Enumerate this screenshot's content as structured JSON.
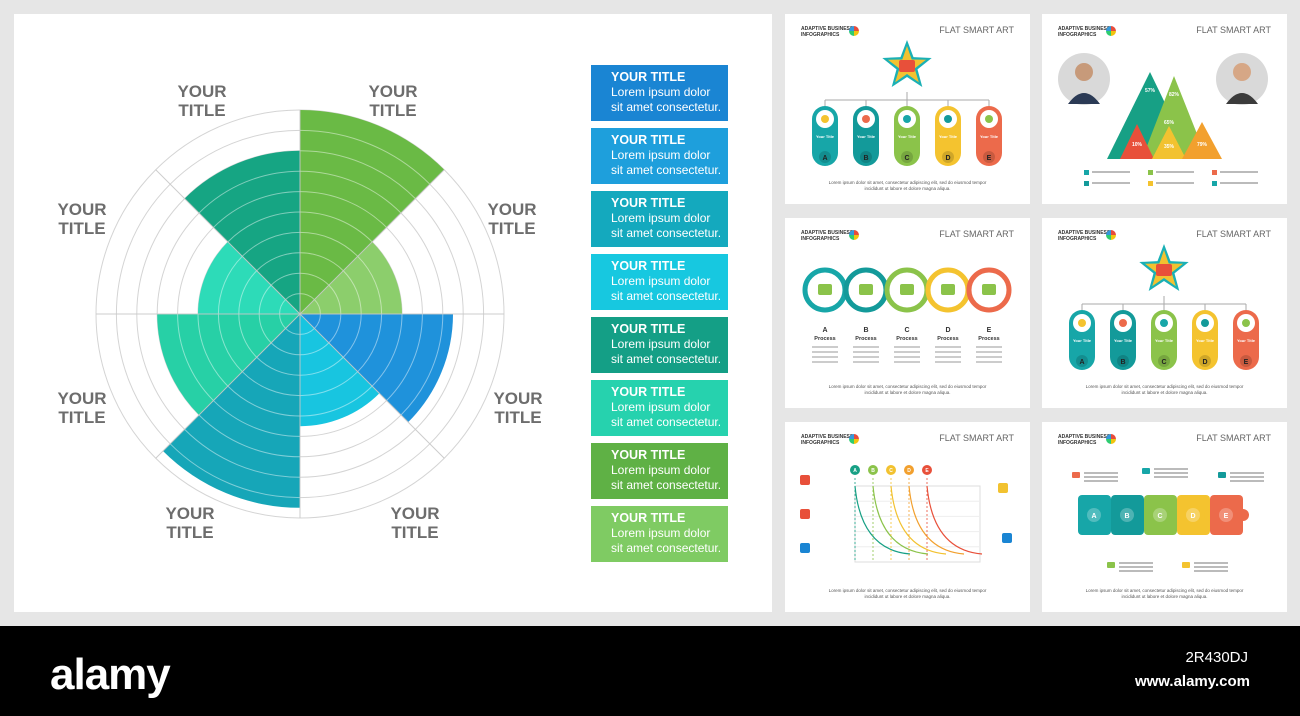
{
  "chart_data": {
    "type": "polar-area",
    "rmax": 10,
    "sectors": [
      {
        "label": "YOUR TITLE",
        "value": 10,
        "color": "#6aba45"
      },
      {
        "label": "YOUR TITLE",
        "value": 5,
        "color": "#8cce6c"
      },
      {
        "label": "YOUR TITLE",
        "value": 7.5,
        "color": "#1f92db"
      },
      {
        "label": "YOUR TITLE",
        "value": 5.5,
        "color": "#18c5e0"
      },
      {
        "label": "YOUR TITLE",
        "value": 9.5,
        "color": "#16a6b8"
      },
      {
        "label": "YOUR TITLE",
        "value": 7,
        "color": "#27d0a6"
      },
      {
        "label": "YOUR TITLE",
        "value": 5,
        "color": "#2ddbb8"
      },
      {
        "label": "YOUR TITLE",
        "value": 8,
        "color": "#16a583"
      }
    ],
    "rings": 10,
    "grid": true
  },
  "legend": [
    {
      "title": "YOUR TITLE",
      "line1": "Lorem ipsum dolor",
      "line2": "sit amet consectetur.",
      "color": "#1a85d3"
    },
    {
      "title": "YOUR TITLE",
      "line1": "Lorem ipsum dolor",
      "line2": "sit amet consectetur.",
      "color": "#1e9fdc"
    },
    {
      "title": "YOUR TITLE",
      "line1": "Lorem ipsum dolor",
      "line2": "sit amet consectetur.",
      "color": "#14a9be"
    },
    {
      "title": "YOUR TITLE",
      "line1": "Lorem ipsum dolor",
      "line2": "sit amet consectetur.",
      "color": "#17c8e0"
    },
    {
      "title": "YOUR TITLE",
      "line1": "Lorem ipsum dolor",
      "line2": "sit amet consectetur.",
      "color": "#149f86"
    },
    {
      "title": "YOUR TITLE",
      "line1": "Lorem ipsum dolor",
      "line2": "sit amet consectetur.",
      "color": "#26d2ae"
    },
    {
      "title": "YOUR TITLE",
      "line1": "Lorem ipsum dolor",
      "line2": "sit amet consectetur.",
      "color": "#5fb145"
    },
    {
      "title": "YOUR TITLE",
      "line1": "Lorem ipsum dolor",
      "line2": "sit amet consectetur.",
      "color": "#7fcb63"
    }
  ],
  "thumbs": [
    {
      "brand": "ADAPTIVE BUSINESS\nINFOGRAPHICS",
      "heading": "FLAT SMART ART",
      "footer": "Lorem ipsum dolor sit amet, consectetur adipiscing elit, sed do eiusmod tempor\nincididunt ut labore et dolore magna aliqua.",
      "kind": "org"
    },
    {
      "brand": "ADAPTIVE BUSINESS\nINFOGRAPHICS",
      "heading": "FLAT SMART ART",
      "footer": "",
      "kind": "triangle"
    },
    {
      "brand": "ADAPTIVE BUSINESS\nINFOGRAPHICS",
      "heading": "FLAT SMART ART",
      "footer": "Lorem ipsum dolor sit amet, consectetur adipiscing elit, sed do eiusmod tempor\nincididunt ut labore et dolore magna aliqua.",
      "kind": "process"
    },
    {
      "brand": "ADAPTIVE BUSINESS\nINFOGRAPHICS",
      "heading": "FLAT SMART ART",
      "footer": "Lorem ipsum dolor sit amet, consectetur adipiscing elit, sed do eiusmod tempor\nincididunt ut labore et dolore magna aliqua.",
      "kind": "org"
    },
    {
      "brand": "ADAPTIVE BUSINESS\nINFOGRAPHICS",
      "heading": "FLAT SMART ART",
      "footer": "Lorem ipsum dolor sit amet, consectetur adipiscing elit, sed do eiusmod tempor\nincididunt ut labore et dolore magna aliqua.",
      "kind": "curves"
    },
    {
      "brand": "ADAPTIVE BUSINESS\nINFOGRAPHICS",
      "heading": "FLAT SMART ART",
      "footer": "Lorem ipsum dolor sit amet, consectetur adipiscing elit, sed do eiusmod tempor\nincididunt ut labore et dolore magna aliqua.",
      "kind": "puzzle"
    }
  ],
  "letters": [
    "A",
    "B",
    "C",
    "D",
    "E"
  ],
  "pill_colors": [
    "#17a6a8",
    "#139a9a",
    "#8bc34a",
    "#f4c32f",
    "#ec6a4b"
  ],
  "process_label": "Process",
  "pill_title": "Your Title",
  "percents": [
    "57%",
    "82%",
    "10%",
    "65%",
    "35%",
    "79%"
  ],
  "watermark": {
    "logo": "alamy",
    "image_id": "2R430DJ",
    "url": "www.alamy.com"
  }
}
